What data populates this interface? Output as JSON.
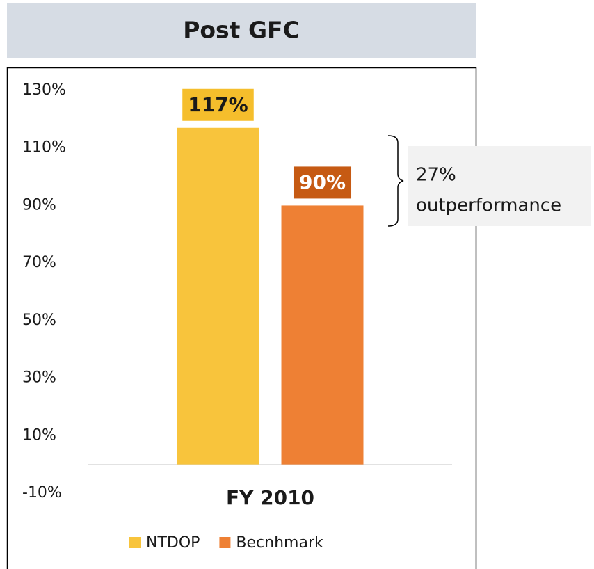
{
  "chart_data": {
    "type": "bar",
    "title": "Post GFC",
    "categories": [
      "FY 2010"
    ],
    "series": [
      {
        "name": "NTDOP",
        "color": "#f8c43c",
        "label_box": "#f5be2c",
        "label_text": "#1a1a1a",
        "values": [
          117
        ],
        "value_labels": [
          "117%"
        ]
      },
      {
        "name": "Becnhmark",
        "color": "#ee8034",
        "label_box": "#c65a13",
        "label_text": "#ffffff",
        "values": [
          90
        ],
        "value_labels": [
          "90%"
        ]
      }
    ],
    "ylim": [
      -10,
      130
    ],
    "yticks": [
      {
        "value": -10,
        "label": "-10%"
      },
      {
        "value": 10,
        "label": "10%"
      },
      {
        "value": 30,
        "label": "30%"
      },
      {
        "value": 50,
        "label": "50%"
      },
      {
        "value": 70,
        "label": "70%"
      },
      {
        "value": 90,
        "label": "90%"
      },
      {
        "value": 110,
        "label": "110%"
      },
      {
        "value": 130,
        "label": "130%"
      }
    ],
    "grid": false,
    "legend": "bottom",
    "annotation": {
      "lines": [
        "27%",
        "outperformance"
      ]
    }
  }
}
